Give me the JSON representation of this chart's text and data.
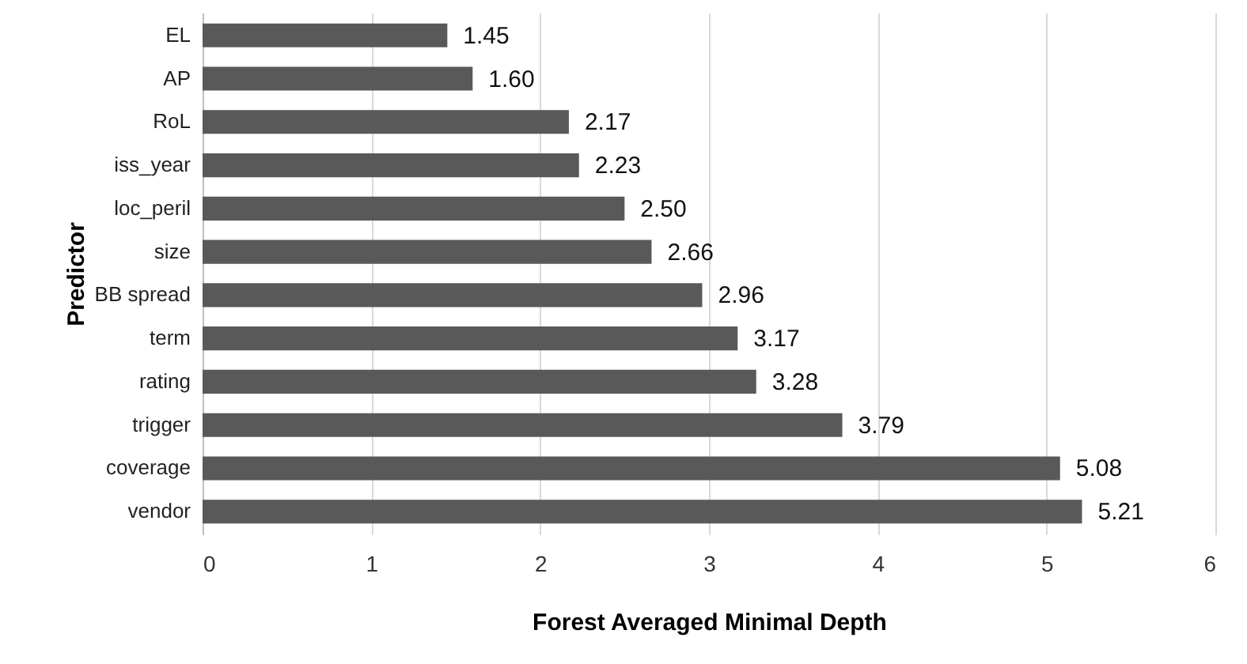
{
  "chart_data": {
    "type": "bar",
    "orientation": "horizontal",
    "xlabel": "Forest Averaged Minimal Depth",
    "ylabel": "Predictor",
    "categories": [
      "EL",
      "AP",
      "RoL",
      "iss_year",
      "loc_peril",
      "size",
      "BB spread",
      "term",
      "rating",
      "trigger",
      "coverage",
      "vendor"
    ],
    "series": [
      {
        "color": "#595959",
        "values": [
          1.45,
          1.6,
          2.17,
          2.23,
          2.5,
          2.66,
          2.96,
          3.17,
          3.28,
          3.79,
          5.08,
          5.21
        ]
      }
    ],
    "value_labels": [
      "1.45",
      "1.60",
      "2.17",
      "2.23",
      "2.50",
      "2.66",
      "2.96",
      "3.17",
      "3.28",
      "3.79",
      "5.08",
      "5.21"
    ],
    "xlim": [
      0,
      6
    ],
    "xticks": [
      0,
      1,
      2,
      3,
      4,
      5,
      6
    ],
    "grid": "x"
  }
}
